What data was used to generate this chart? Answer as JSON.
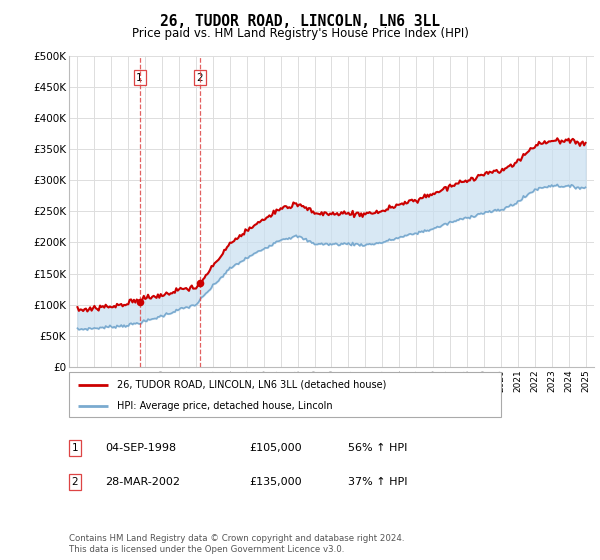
{
  "title": "26, TUDOR ROAD, LINCOLN, LN6 3LL",
  "subtitle": "Price paid vs. HM Land Registry's House Price Index (HPI)",
  "ylabel_ticks": [
    "£0",
    "£50K",
    "£100K",
    "£150K",
    "£200K",
    "£250K",
    "£300K",
    "£350K",
    "£400K",
    "£450K",
    "£500K"
  ],
  "ytick_values": [
    0,
    50000,
    100000,
    150000,
    200000,
    250000,
    300000,
    350000,
    400000,
    450000,
    500000
  ],
  "ylim": [
    0,
    500000
  ],
  "xlim_left": 1994.5,
  "xlim_right": 2025.5,
  "background_color": "#ffffff",
  "grid_color": "#dddddd",
  "transaction1": {
    "label": "1",
    "date": "04-SEP-1998",
    "price": 105000,
    "x": 1998.67
  },
  "transaction2": {
    "label": "2",
    "date": "28-MAR-2002",
    "price": 135000,
    "x": 2002.23
  },
  "legend_label_red": "26, TUDOR ROAD, LINCOLN, LN6 3LL (detached house)",
  "legend_label_blue": "HPI: Average price, detached house, Lincoln",
  "footer": "Contains HM Land Registry data © Crown copyright and database right 2024.\nThis data is licensed under the Open Government Licence v3.0.",
  "table_rows": [
    {
      "num": "1",
      "date": "04-SEP-1998",
      "price": "£105,000",
      "pct": "56% ↑ HPI"
    },
    {
      "num": "2",
      "date": "28-MAR-2002",
      "price": "£135,000",
      "pct": "37% ↑ HPI"
    }
  ],
  "red_color": "#cc0000",
  "blue_color": "#7aaacf",
  "shade_color": "#c8dff0",
  "dashed_color": "#dd4444"
}
